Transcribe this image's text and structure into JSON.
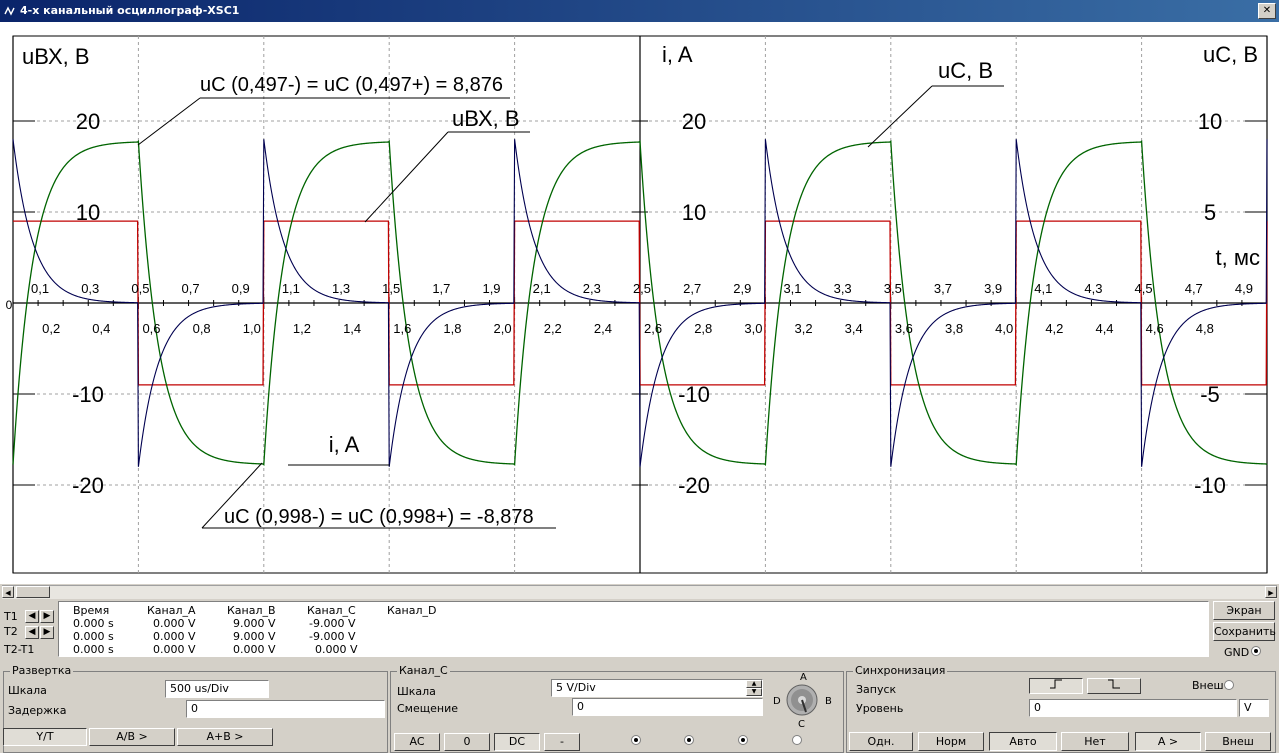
{
  "window": {
    "title": "4-х канальный осциллограф-XSC1"
  },
  "plot": {
    "left_axis_title": "uВХ, В",
    "mid_axis_title": "i, A",
    "right_axis_title": "uC, В",
    "time_axis_title": "t, мс",
    "zero_label": "0",
    "left_ticks": [
      "20",
      "10",
      "-10",
      "-20"
    ],
    "mid_ticks": [
      "20",
      "10",
      "-10",
      "-20"
    ],
    "right_ticks": [
      "10",
      "5",
      "-5",
      "-10"
    ],
    "time_labels_top": [
      "0,1",
      "0,3",
      "0,5",
      "0,7",
      "0,9",
      "1,1",
      "1,3",
      "1,5",
      "1,7",
      "1,9",
      "2,1",
      "2,3",
      "2,5",
      "2,7",
      "2,9",
      "3,1",
      "3,3",
      "3,5",
      "3,7",
      "3,9",
      "4,1",
      "4,3",
      "4,5",
      "4,7",
      "4,9"
    ],
    "time_labels_bottom": [
      "0,2",
      "0,4",
      "0,6",
      "0,8",
      "1,0",
      "1,2",
      "1,4",
      "1,6",
      "1,8",
      "2,0",
      "2,2",
      "2,4",
      "2,6",
      "2,8",
      "3,0",
      "3,2",
      "3,4",
      "3,6",
      "3,8",
      "4,0",
      "4,2",
      "4,4",
      "4,6",
      "4,8"
    ],
    "annotations": {
      "uc_top": "uC (0,497-) = uC (0,497+) = 8,876",
      "uvx_label": "uВХ, В",
      "uc_label": "uC, В",
      "i_label": "i, A",
      "uc_bottom": "uC (0,998-) = uC (0,998+) = -8,878"
    },
    "colors": {
      "uvx": "#c00000",
      "uc": "#006400",
      "i": "#000050",
      "grid": "#a0a0a0"
    }
  },
  "chart_data": {
    "type": "line",
    "xlabel": "t, мс",
    "xlim": [
      0,
      5
    ],
    "period_ms": 1.0,
    "series": [
      {
        "name": "uВХ, В",
        "amplitude": 9,
        "shape": "square"
      },
      {
        "name": "uC, В",
        "amplitude": 8.88,
        "shape": "rc-exponential"
      },
      {
        "name": "i, A",
        "peak": 18,
        "shape": "rc-exponential-decay"
      }
    ]
  },
  "readout": {
    "rows": [
      "T1",
      "T2",
      "T2-T1"
    ],
    "headers": [
      "Время",
      "Канал_A",
      "Канал_B",
      "Канал_C",
      "Канал_D"
    ],
    "values": [
      [
        "0.000 s",
        "0.000 V",
        "9.000 V",
        "-9.000 V",
        ""
      ],
      [
        "0.000 s",
        "0.000 V",
        "9.000 V",
        "-9.000 V",
        ""
      ],
      [
        "0.000 s",
        "0.000 V",
        "0.000 V",
        "0.000 V",
        ""
      ]
    ]
  },
  "side_buttons": {
    "screen": "Экран",
    "save": "Сохранить",
    "gnd": "GND"
  },
  "timebase": {
    "title": "Развертка",
    "scale_label": "Шкала",
    "scale_value": "500 us/Div",
    "delay_label": "Задержка",
    "delay_value": "0",
    "modes": [
      "Y/T",
      "A/B >",
      "A+B >"
    ]
  },
  "channel": {
    "title": "Канал_C",
    "scale_label": "Шкала",
    "scale_value": "5  V/Div",
    "offset_label": "Смещение",
    "offset_value": "0",
    "coupling": [
      "AC",
      "0",
      "DC",
      "-"
    ],
    "knob_labels": {
      "a": "A",
      "b": "B",
      "c": "C",
      "d": "D"
    }
  },
  "trigger": {
    "title": "Синхронизация",
    "start_label": "Запуск",
    "external_label": "Внеш",
    "level_label": "Уровень",
    "level_value": "0",
    "level_unit": "V",
    "modes": [
      "Одн.",
      "Норм",
      "Авто",
      "Нет",
      "A >",
      "Внеш"
    ]
  }
}
